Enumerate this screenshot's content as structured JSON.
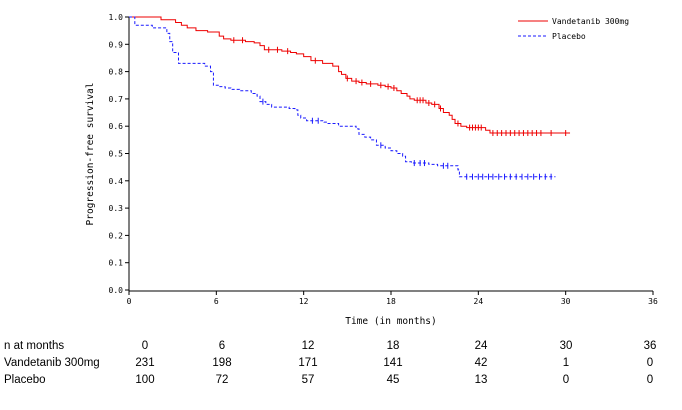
{
  "chart_data": {
    "type": "line",
    "subtype": "kaplan-meier",
    "xlabel": "Time (in months)",
    "ylabel": "Progression-free survival",
    "xlim": [
      0,
      36
    ],
    "ylim": [
      0,
      1.0
    ],
    "xticks": [
      0,
      6,
      12,
      18,
      24,
      30,
      36
    ],
    "xtick_labels": [
      "0",
      "6",
      "12",
      "18",
      "24",
      "30",
      "36"
    ],
    "yticks": [
      0.0,
      0.1,
      0.2,
      0.3,
      0.4,
      0.5,
      0.6,
      0.7,
      0.8,
      0.9,
      1.0
    ],
    "ytick_labels": [
      "0.0",
      "0.1",
      "0.2",
      "0.3",
      "0.4",
      "0.5",
      "0.6",
      "0.7",
      "0.8",
      "0.9",
      "1.0"
    ],
    "legend_position": "top-right",
    "series": [
      {
        "name": "Vandetanib 300mg",
        "color": "#ee0000",
        "dash": "solid",
        "steps": [
          [
            0,
            1.0
          ],
          [
            2.2,
            0.99
          ],
          [
            3.2,
            0.98
          ],
          [
            3.6,
            0.97
          ],
          [
            4.0,
            0.96
          ],
          [
            4.6,
            0.95
          ],
          [
            5.4,
            0.945
          ],
          [
            6.2,
            0.93
          ],
          [
            6.5,
            0.92
          ],
          [
            7.0,
            0.915
          ],
          [
            8.0,
            0.91
          ],
          [
            8.6,
            0.905
          ],
          [
            9.0,
            0.895
          ],
          [
            9.3,
            0.88
          ],
          [
            10.5,
            0.875
          ],
          [
            11.1,
            0.87
          ],
          [
            11.5,
            0.865
          ],
          [
            12.0,
            0.855
          ],
          [
            12.5,
            0.84
          ],
          [
            13.3,
            0.83
          ],
          [
            14.0,
            0.82
          ],
          [
            14.4,
            0.8
          ],
          [
            14.6,
            0.79
          ],
          [
            14.9,
            0.775
          ],
          [
            15.3,
            0.765
          ],
          [
            15.8,
            0.76
          ],
          [
            16.3,
            0.755
          ],
          [
            17.1,
            0.75
          ],
          [
            17.6,
            0.745
          ],
          [
            18.0,
            0.74
          ],
          [
            18.4,
            0.73
          ],
          [
            18.7,
            0.72
          ],
          [
            19.1,
            0.71
          ],
          [
            19.3,
            0.7
          ],
          [
            19.6,
            0.695
          ],
          [
            20.4,
            0.685
          ],
          [
            20.8,
            0.68
          ],
          [
            21.3,
            0.665
          ],
          [
            21.6,
            0.65
          ],
          [
            22.0,
            0.64
          ],
          [
            22.2,
            0.625
          ],
          [
            22.4,
            0.61
          ],
          [
            22.8,
            0.6
          ],
          [
            23.2,
            0.595
          ],
          [
            24.5,
            0.585
          ],
          [
            24.8,
            0.575
          ]
        ],
        "end": 30.3,
        "censors": [
          7.2,
          7.8,
          9.6,
          10.2,
          10.9,
          12.8,
          15.0,
          15.6,
          16.0,
          16.6,
          17.3,
          17.8,
          18.2,
          19.8,
          20.0,
          20.2,
          20.6,
          21.0,
          21.4,
          22.6,
          23.4,
          23.6,
          23.8,
          24.0,
          24.2,
          25.0,
          25.3,
          25.6,
          25.9,
          26.2,
          26.5,
          26.8,
          27.1,
          27.4,
          27.7,
          28.0,
          28.3,
          29.0,
          30.0
        ]
      },
      {
        "name": "Placebo",
        "color": "#1a1aff",
        "dash": "dashed",
        "steps": [
          [
            0,
            1.0
          ],
          [
            0.4,
            0.97
          ],
          [
            1.6,
            0.96
          ],
          [
            2.6,
            0.94
          ],
          [
            2.8,
            0.91
          ],
          [
            3.0,
            0.87
          ],
          [
            3.4,
            0.83
          ],
          [
            5.2,
            0.82
          ],
          [
            5.6,
            0.8
          ],
          [
            5.8,
            0.75
          ],
          [
            6.2,
            0.745
          ],
          [
            6.6,
            0.74
          ],
          [
            7.0,
            0.735
          ],
          [
            7.6,
            0.73
          ],
          [
            8.4,
            0.72
          ],
          [
            8.8,
            0.71
          ],
          [
            9.0,
            0.69
          ],
          [
            9.4,
            0.68
          ],
          [
            9.8,
            0.67
          ],
          [
            11.0,
            0.665
          ],
          [
            11.4,
            0.66
          ],
          [
            11.6,
            0.64
          ],
          [
            11.8,
            0.63
          ],
          [
            12.2,
            0.62
          ],
          [
            13.4,
            0.615
          ],
          [
            13.6,
            0.61
          ],
          [
            14.4,
            0.6
          ],
          [
            15.6,
            0.59
          ],
          [
            15.8,
            0.57
          ],
          [
            16.2,
            0.56
          ],
          [
            16.6,
            0.55
          ],
          [
            17.0,
            0.53
          ],
          [
            17.6,
            0.52
          ],
          [
            18.0,
            0.51
          ],
          [
            18.4,
            0.5
          ],
          [
            18.8,
            0.49
          ],
          [
            19.0,
            0.47
          ],
          [
            19.4,
            0.465
          ],
          [
            20.6,
            0.46
          ],
          [
            21.2,
            0.455
          ],
          [
            22.6,
            0.44
          ],
          [
            22.7,
            0.415
          ]
        ],
        "end": 29.3,
        "censors": [
          9.2,
          12.6,
          13.0,
          17.3,
          19.6,
          20.0,
          20.3,
          21.6,
          21.9,
          23.2,
          23.6,
          24.0,
          24.3,
          24.7,
          25.0,
          25.4,
          25.8,
          26.2,
          26.6,
          27.0,
          27.4,
          27.8,
          28.2,
          28.6,
          29.0
        ]
      }
    ]
  },
  "risk_table": {
    "header_label": "n at months",
    "months": [
      "0",
      "6",
      "12",
      "18",
      "24",
      "30",
      "36"
    ],
    "rows": [
      {
        "label": "Vandetanib 300mg",
        "values": [
          "231",
          "198",
          "171",
          "141",
          "42",
          "1",
          "0"
        ]
      },
      {
        "label": "Placebo",
        "values": [
          "100",
          "72",
          "57",
          "45",
          "13",
          "0",
          "0"
        ]
      }
    ]
  }
}
